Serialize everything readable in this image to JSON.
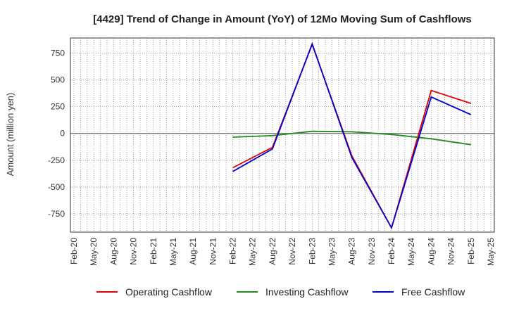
{
  "chart_data": {
    "type": "line",
    "title": "[4429]  Trend of Change in Amount (YoY) of 12Mo Moving Sum of Cashflows",
    "xlabel": "",
    "ylabel": "Amount (million yen)",
    "ylim": [
      -920,
      890
    ],
    "yticks": [
      750,
      500,
      250,
      0,
      -250,
      -500,
      -750
    ],
    "ytick_labels": [
      "750",
      "500",
      "250",
      "0",
      "-250",
      "-500",
      "-750"
    ],
    "categories": [
      "Feb-20",
      "May-20",
      "Aug-20",
      "Nov-20",
      "Feb-21",
      "May-21",
      "Aug-21",
      "Nov-21",
      "Feb-22",
      "May-22",
      "Aug-22",
      "Nov-22",
      "Feb-23",
      "May-23",
      "Aug-23",
      "Nov-23",
      "Feb-24",
      "May-24",
      "Aug-24",
      "Nov-24",
      "Feb-25",
      "May-25"
    ],
    "grid": true,
    "legend_position": "bottom",
    "series": [
      {
        "name": "Operating Cashflow",
        "color": "#dd0000",
        "values": [
          null,
          null,
          null,
          null,
          null,
          null,
          null,
          null,
          -320,
          null,
          -130,
          null,
          830,
          null,
          -210,
          null,
          -880,
          null,
          400,
          null,
          280,
          null
        ]
      },
      {
        "name": "Investing Cashflow",
        "color": "#228822",
        "values": [
          null,
          null,
          null,
          null,
          null,
          null,
          null,
          null,
          -35,
          null,
          -20,
          null,
          20,
          null,
          15,
          null,
          -10,
          null,
          -50,
          null,
          -105,
          null
        ]
      },
      {
        "name": "Free Cashflow",
        "color": "#0000cc",
        "values": [
          null,
          null,
          null,
          null,
          null,
          null,
          null,
          null,
          -355,
          null,
          -145,
          null,
          835,
          null,
          -225,
          null,
          -880,
          null,
          340,
          null,
          175,
          null
        ]
      }
    ]
  }
}
